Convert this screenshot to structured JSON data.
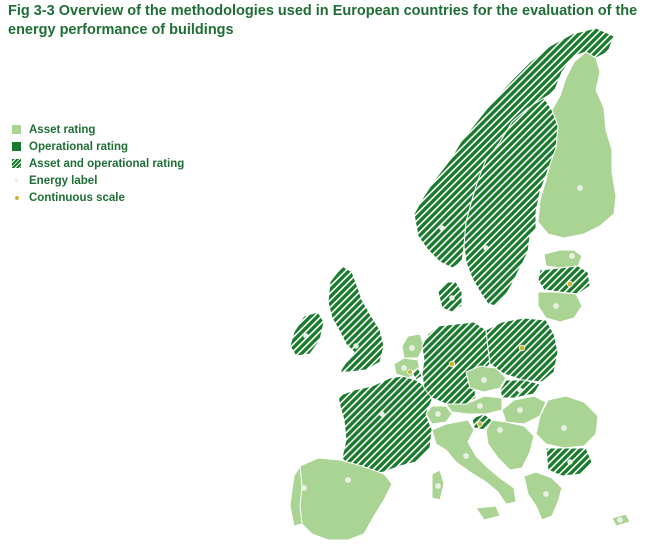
{
  "figure": {
    "title": "Fig 3-3 Overview of the methodologies used in European countries for the evaluation of the energy performance of buildings"
  },
  "legend": {
    "items": [
      {
        "label": "Asset rating",
        "swatch": "asset"
      },
      {
        "label": "Operational rating",
        "swatch": "operational"
      },
      {
        "label": "Asset and operational rating",
        "swatch": "both"
      },
      {
        "label": "Energy label",
        "swatch": "energy-dot"
      },
      {
        "label": "Continuous scale",
        "swatch": "continuous-dot"
      }
    ]
  },
  "colors": {
    "asset": "#a9d493",
    "operational": "#1b7a2e",
    "hatch_background": "#ffffff",
    "energy_label_dot": "#e8eee2",
    "continuous_scale_dot": "#c9b437",
    "title_text": "#1f6e36"
  }
}
